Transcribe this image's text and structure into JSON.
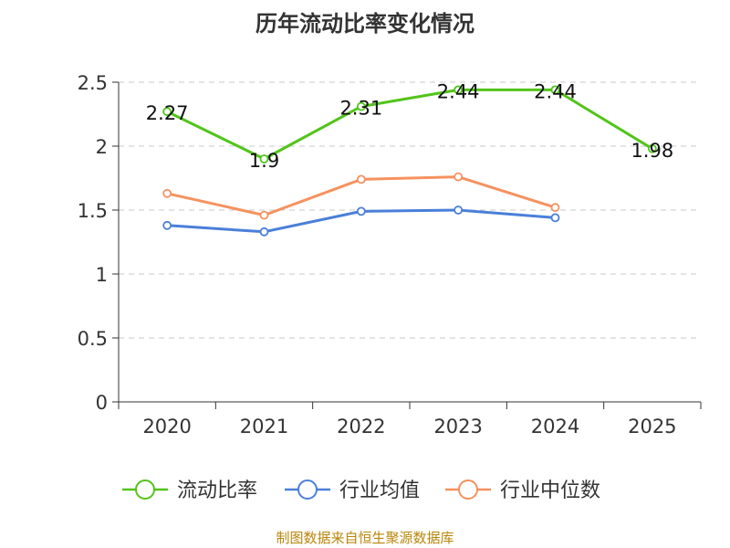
{
  "chart_data": {
    "type": "line",
    "title": "历年流动比率变化情况",
    "categories": [
      "2020",
      "2021",
      "2022",
      "2023",
      "2024",
      "2025"
    ],
    "ylim": [
      0,
      2.5
    ],
    "yticks": [
      0,
      0.5,
      1,
      1.5,
      2,
      2.5
    ],
    "ytick_labels": [
      "0",
      "0.5",
      "1",
      "1.5",
      "2",
      "2.5"
    ],
    "grid": true,
    "legend_position": "bottom",
    "series": [
      {
        "name": "流动比率",
        "color": "#52c41a",
        "values": [
          2.27,
          1.9,
          2.31,
          2.44,
          2.44,
          1.98
        ],
        "labels": [
          "2.27",
          "1.9",
          "2.31",
          "2.44",
          "2.44",
          "1.98"
        ],
        "show_labels": true
      },
      {
        "name": "行业均值",
        "color": "#4a7fd9",
        "values": [
          1.38,
          1.33,
          1.49,
          1.5,
          1.44,
          null
        ],
        "show_labels": false
      },
      {
        "name": "行业中位数",
        "color": "#f5925f",
        "values": [
          1.63,
          1.46,
          1.74,
          1.76,
          1.52,
          null
        ],
        "show_labels": false
      }
    ]
  },
  "source": "制图数据来自恒生聚源数据库"
}
